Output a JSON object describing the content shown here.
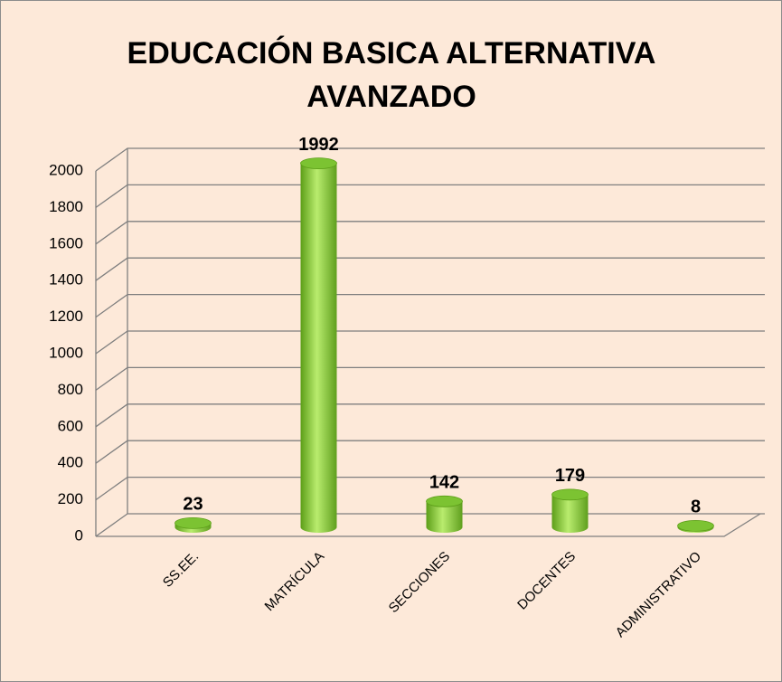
{
  "chart_data": {
    "type": "bar3d",
    "title": "EDUCACIÓN BASICA ALTERNATIVA AVANZADO",
    "categories": [
      "SS.EE.",
      "MATRÍCULA",
      "SECCIONES",
      "DOCENTES",
      "ADMINISTRATIVO"
    ],
    "values": [
      23,
      1992,
      142,
      179,
      8
    ],
    "color": "#7cc332",
    "ylim": [
      0,
      2000
    ],
    "yticks": [
      0,
      200,
      400,
      600,
      800,
      1000,
      1200,
      1400,
      1600,
      1800,
      2000
    ],
    "grid": true
  }
}
